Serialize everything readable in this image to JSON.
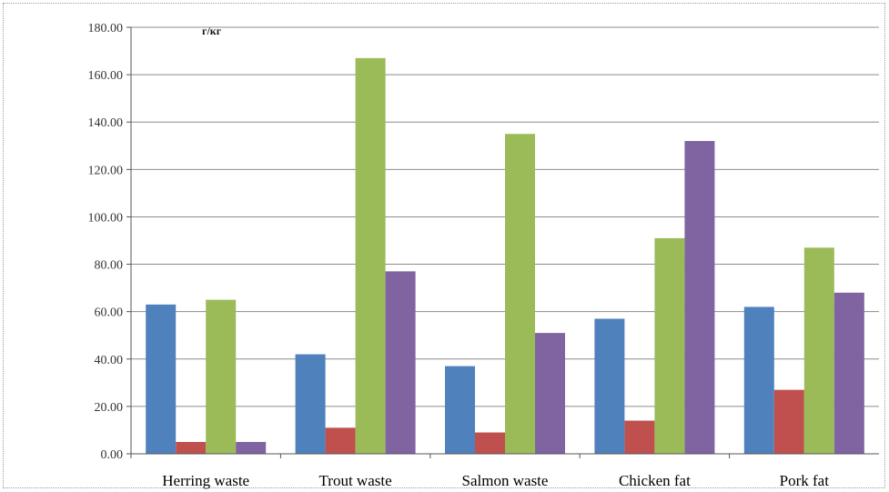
{
  "chart_data": {
    "type": "bar",
    "title": "",
    "unit_label": "г/кг",
    "xlabel": "",
    "ylabel": "",
    "categories": [
      "Herring waste",
      "Trout waste",
      "Salmon waste",
      "Chicken fat",
      "Pork fat"
    ],
    "ylim": [
      0,
      180
    ],
    "yticks": [
      "0.00",
      "20.00",
      "40.00",
      "60.00",
      "80.00",
      "100.00",
      "120.00",
      "140.00",
      "160.00",
      "180.00"
    ],
    "grid": true,
    "legend": "none",
    "series": [
      {
        "color": "#4f81bd",
        "values": [
          63,
          42,
          37,
          57,
          62
        ]
      },
      {
        "color": "#c0504d",
        "values": [
          5,
          11,
          9,
          14,
          27
        ]
      },
      {
        "color": "#9bbb59",
        "values": [
          65,
          167,
          135,
          91,
          87
        ]
      },
      {
        "color": "#8064a2",
        "values": [
          5,
          77,
          51,
          132,
          68
        ]
      }
    ]
  }
}
